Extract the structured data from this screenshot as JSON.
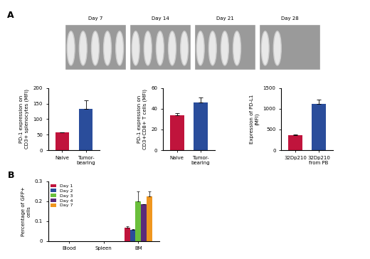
{
  "panel_labels": [
    "A",
    "B"
  ],
  "images": {
    "labels": [
      "Day 7",
      "Day 14",
      "Day 21",
      "Day 28"
    ]
  },
  "chart_data": [
    {
      "type": "bar",
      "y_label": "PD-1 expression on CD3+ splenocytes (MFI)",
      "categories": [
        "Naive",
        "Tumor-bearing"
      ],
      "values": [
        57,
        133
      ],
      "errors": [
        0,
        27
      ],
      "colors": [
        "#c0143c",
        "#2a4d9b"
      ],
      "ylim": [
        0,
        200
      ],
      "yticks": [
        0,
        50,
        100,
        150,
        200
      ]
    },
    {
      "type": "bar",
      "y_label": "PD-1 expression on CD3+CD8+ T cells (MFI)",
      "categories": [
        "Naive",
        "Tumor-bearing"
      ],
      "values": [
        34,
        46
      ],
      "errors": [
        2,
        5
      ],
      "colors": [
        "#c0143c",
        "#2a4d9b"
      ],
      "ylim": [
        0,
        60
      ],
      "yticks": [
        0,
        20,
        40,
        60
      ]
    },
    {
      "type": "bar",
      "y_label": "Expression of PD-L1 (MFI)",
      "categories": [
        "32Dp210",
        "32Dp210 from PB"
      ],
      "values": [
        370,
        1110
      ],
      "errors": [
        15,
        110
      ],
      "colors": [
        "#c0143c",
        "#2a4d9b"
      ],
      "ylim": [
        0,
        1500
      ],
      "yticks": [
        0,
        500,
        1000,
        1500
      ]
    },
    {
      "type": "bar",
      "y_label": "Percentage of GFP+ cells",
      "categories": [
        "Blood",
        "Spleen",
        "BM"
      ],
      "series": [
        {
          "name": "Day 1",
          "color": "#c0143c",
          "values": [
            0,
            0,
            0.065
          ],
          "errors": [
            0,
            0,
            0.007
          ]
        },
        {
          "name": "Day 2",
          "color": "#2a4d9b",
          "values": [
            0,
            0,
            0.055
          ],
          "errors": [
            0,
            0,
            0.003
          ]
        },
        {
          "name": "Day 3",
          "color": "#6abf3b",
          "values": [
            0,
            0,
            0.2
          ],
          "errors": [
            0,
            0,
            0.05
          ]
        },
        {
          "name": "Day 4",
          "color": "#5b2a7a",
          "values": [
            0,
            0,
            0.185
          ],
          "errors": [
            0,
            0,
            0
          ]
        },
        {
          "name": "Day 7",
          "color": "#f0961e",
          "values": [
            0,
            0,
            0.225
          ],
          "errors": [
            0,
            0,
            0.025
          ]
        }
      ],
      "legend": "upper left",
      "ylim": [
        0,
        0.3
      ],
      "yticks": [
        0,
        0.1,
        0.2,
        0.3
      ]
    }
  ]
}
